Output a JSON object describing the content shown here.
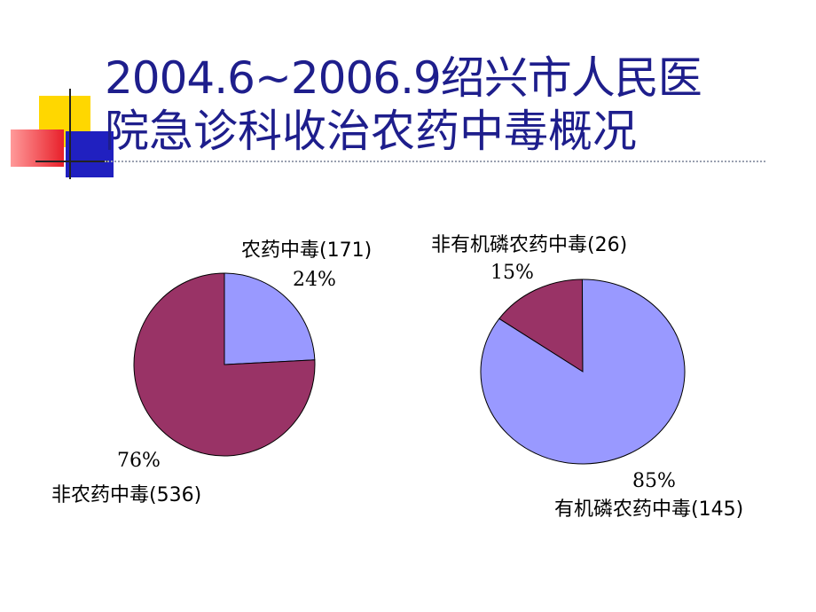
{
  "slide": {
    "title_line1": "2004.6~2006.9绍兴市人民医",
    "title_line2": "院急诊科收治农药中毒概况"
  },
  "colors": {
    "title": "#1e1e8c",
    "slice_purple_blue": "#9999ff",
    "slice_plum": "#993366",
    "deco_yellow": "#ffd700",
    "deco_red": "#e8202a",
    "deco_blue": "#2020c0"
  },
  "chart_data": [
    {
      "type": "pie",
      "slices": [
        {
          "label": "农药中毒(171)",
          "percent_label": "24%",
          "value": 171,
          "percent": 24,
          "color": "#9999ff"
        },
        {
          "label": "非农药中毒(536)",
          "percent_label": "76%",
          "value": 536,
          "percent": 76,
          "color": "#993366"
        }
      ]
    },
    {
      "type": "pie",
      "slices": [
        {
          "label": "非有机磷农药中毒(26)",
          "percent_label": "15%",
          "value": 26,
          "percent": 15,
          "color": "#993366"
        },
        {
          "label": "有机磷农药中毒(145)",
          "percent_label": "85%",
          "value": 145,
          "percent": 85,
          "color": "#9999ff"
        }
      ]
    }
  ]
}
